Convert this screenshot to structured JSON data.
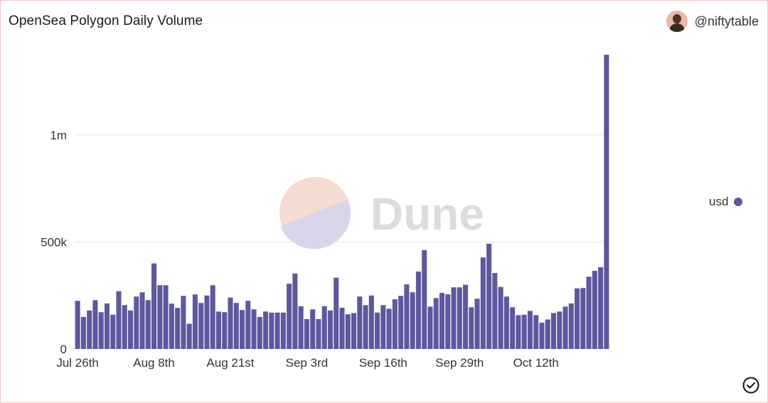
{
  "header": {
    "title": "OpenSea Polygon Daily Volume",
    "author": "@niftytable"
  },
  "watermark": {
    "text": "Dune"
  },
  "legend": {
    "label": "usd"
  },
  "colors": {
    "bar": "#5d589e",
    "grid": "#e6e6e6",
    "watermark_text": "#dcdcdc",
    "logo_top": "#f4dcd2",
    "logo_bottom": "#d8d6ea"
  },
  "chart_data": {
    "type": "bar",
    "series": [
      {
        "name": "usd",
        "values": [
          225000,
          150000,
          180000,
          228000,
          172000,
          213000,
          160000,
          270000,
          205000,
          180000,
          245000,
          265000,
          228000,
          400000,
          298000,
          298000,
          212000,
          192000,
          248000,
          118000,
          255000,
          215000,
          250000,
          298000,
          175000,
          172000,
          240000,
          215000,
          182000,
          225000,
          185000,
          150000,
          175000,
          170000,
          170000,
          170000,
          305000,
          353000,
          200000,
          140000,
          185000,
          140000,
          200000,
          180000,
          333000,
          193000,
          162000,
          168000,
          245000,
          205000,
          250000,
          170000,
          205000,
          188000,
          232000,
          248000,
          302000,
          265000,
          362000,
          462000,
          198000,
          238000,
          262000,
          255000,
          288000,
          288000,
          300000,
          195000,
          235000,
          428000,
          492000,
          355000,
          290000,
          245000,
          195000,
          158000,
          160000,
          178000,
          158000,
          123000,
          138000,
          168000,
          175000,
          198000,
          213000,
          283000,
          285000,
          338000,
          365000,
          382000,
          1375000
        ]
      }
    ],
    "x_tick_labels": [
      "Jul 26th",
      "Aug 8th",
      "Aug 21st",
      "Sep 3rd",
      "Sep 16th",
      "Sep 29th",
      "Oct 12th"
    ],
    "x_tick_indices": [
      0,
      13,
      26,
      39,
      52,
      65,
      78
    ],
    "y_ticks": [
      {
        "value": 0,
        "label": "0"
      },
      {
        "value": 500000,
        "label": "500k"
      },
      {
        "value": 1000000,
        "label": "1m"
      }
    ],
    "ylim": [
      0,
      1375000
    ],
    "grid": true,
    "legend_position": "right"
  }
}
